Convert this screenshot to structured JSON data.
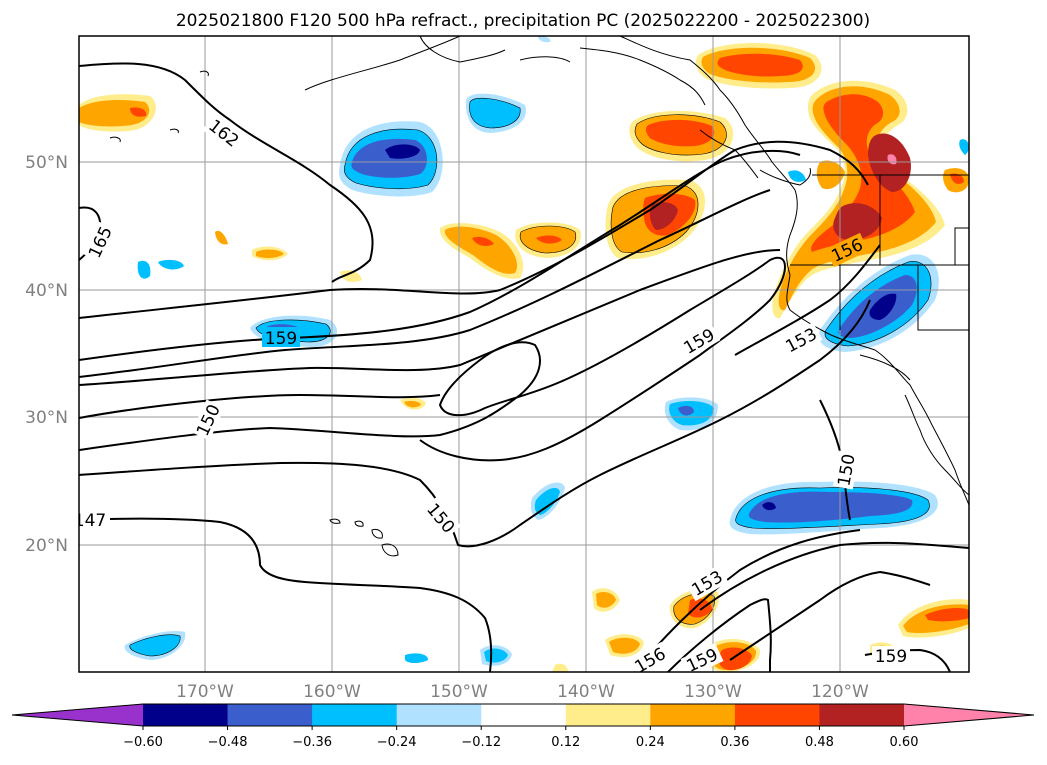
{
  "title": "2025021800 F120 500 hPa refract., precipitation PC (2025022200 - 2025022300)",
  "lat_labels": [
    "50°N",
    "40°N",
    "30°N",
    "20°N"
  ],
  "lon_labels": [
    "170°W",
    "160°W",
    "150°W",
    "140°W",
    "130°W",
    "120°W"
  ],
  "colorbar": {
    "ticks": [
      "−0.60",
      "−0.48",
      "−0.36",
      "−0.24",
      "−0.12",
      "0.12",
      "0.24",
      "0.36",
      "0.48",
      "0.60"
    ],
    "colors": [
      "#9932CC",
      "#00008B",
      "#3A5FCD",
      "#00BFFF",
      "#B0E2FF",
      "#FFFFFF",
      "#FFEC8B",
      "#FFA500",
      "#FF4500",
      "#B22222",
      "#FF82AB"
    ]
  },
  "contour_labels": [
    "162",
    "165",
    "159",
    "150",
    "147",
    "150",
    "159",
    "153",
    "156",
    "150",
    "153",
    "156",
    "159",
    "159"
  ]
}
